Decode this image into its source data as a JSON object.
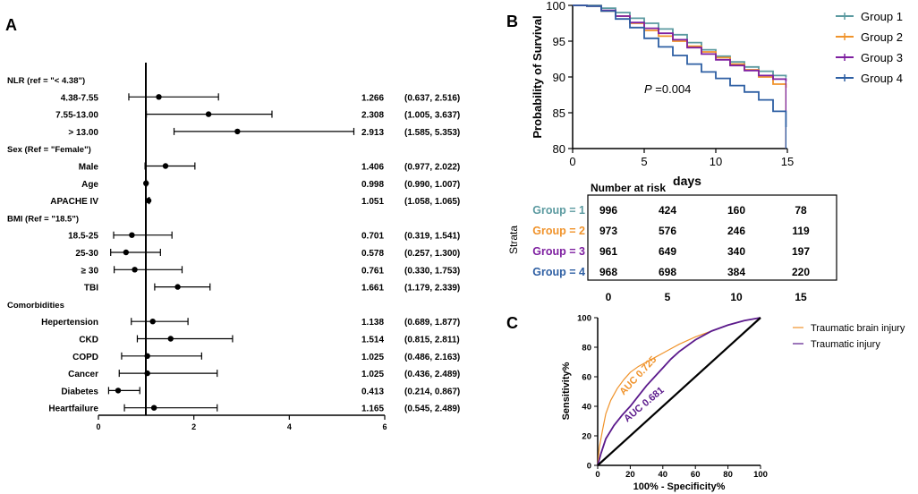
{
  "panel_labels": {
    "a": "A",
    "b": "B",
    "c": "C"
  },
  "colors": {
    "group1": "#5b9aa0",
    "group2": "#f0932b",
    "group3": "#7e1fa0",
    "group4": "#2e5fa3",
    "tbi": "#f0932b",
    "ti": "#5b1a8c"
  },
  "chart_data": [
    {
      "type": "forest",
      "panel": "A",
      "xlim": [
        0,
        6
      ],
      "xticks": [
        "0",
        "2",
        "4",
        "6"
      ],
      "reference_line": 1,
      "rows": [
        {
          "label": "NLR (ref = \"< 4.38\")",
          "header": true
        },
        {
          "label": "4.38-7.55",
          "or": 1.266,
          "lo": 0.637,
          "hi": 2.516,
          "or_text": "1.266",
          "ci_text": "(0.637, 2.516)"
        },
        {
          "label": "7.55-13.00",
          "or": 2.308,
          "lo": 1.005,
          "hi": 3.637,
          "or_text": "2.308",
          "ci_text": "(1.005, 3.637)"
        },
        {
          "label": "> 13.00",
          "or": 2.913,
          "lo": 1.585,
          "hi": 5.353,
          "or_text": "2.913",
          "ci_text": "(1.585, 5.353)"
        },
        {
          "label": "Sex (Ref = \"Female\")",
          "header": true
        },
        {
          "label": "Male",
          "or": 1.406,
          "lo": 0.977,
          "hi": 2.022,
          "or_text": "1.406",
          "ci_text": "(0.977,  2.022)"
        },
        {
          "label": "Age",
          "or": 0.998,
          "lo": 0.99,
          "hi": 1.007,
          "or_text": "0.998",
          "ci_text": "(0.990, 1.007)"
        },
        {
          "label": "APACHE IV",
          "or": 1.051,
          "lo": 1.058,
          "hi": 1.065,
          "or_text": "1.051",
          "ci_text": "(1.058, 1.065)"
        },
        {
          "label": "BMI (Ref = \"18.5\")",
          "header": true
        },
        {
          "label": "18.5-25",
          "or": 0.701,
          "lo": 0.319,
          "hi": 1.541,
          "or_text": "0.701",
          "ci_text": "(0.319, 1.541)"
        },
        {
          "label": "25-30",
          "or": 0.578,
          "lo": 0.257,
          "hi": 1.3,
          "or_text": "0.578",
          "ci_text": "(0.257, 1.300)"
        },
        {
          "label": "≥ 30",
          "or": 0.761,
          "lo": 0.33,
          "hi": 1.753,
          "or_text": "0.761",
          "ci_text": "(0.330, 1.753)"
        },
        {
          "label": "TBI",
          "or": 1.661,
          "lo": 1.179,
          "hi": 2.339,
          "or_text": "1.661",
          "ci_text": "(1.179, 2.339)"
        },
        {
          "label": "Comorbidities",
          "header": true
        },
        {
          "label": "Hepertension",
          "or": 1.138,
          "lo": 0.689,
          "hi": 1.877,
          "or_text": "1.138",
          "ci_text": "(0.689, 1.877)"
        },
        {
          "label": "CKD",
          "or": 1.514,
          "lo": 0.815,
          "hi": 2.811,
          "or_text": "1.514",
          "ci_text": "(0.815, 2.811)"
        },
        {
          "label": "COPD",
          "or": 1.025,
          "lo": 0.486,
          "hi": 2.163,
          "or_text": "1.025",
          "ci_text": "(0.486, 2.163)"
        },
        {
          "label": "Cancer",
          "or": 1.025,
          "lo": 0.436,
          "hi": 2.489,
          "or_text": "1.025",
          "ci_text": "(0.436, 2.489)"
        },
        {
          "label": "Diabetes",
          "or": 0.413,
          "lo": 0.214,
          "hi": 0.867,
          "or_text": "0.413",
          "ci_text": "(0.214, 0.867)"
        },
        {
          "label": "Heartfailure",
          "or": 1.165,
          "lo": 0.545,
          "hi": 2.489,
          "or_text": "1.165",
          "ci_text": "(0.545, 2.489)"
        }
      ]
    },
    {
      "type": "line",
      "subtype": "kaplan-meier",
      "panel": "B",
      "ylabel": "Probability of Survival",
      "xlabel": "days",
      "xlim": [
        0,
        15
      ],
      "ylim": [
        80,
        100
      ],
      "xticks": [
        "0",
        "5",
        "10",
        "15"
      ],
      "yticks": [
        "80",
        "85",
        "90",
        "95",
        "100"
      ],
      "annotation": {
        "p_label": "P",
        "p_value": " =0.004"
      },
      "legend_position": "top-right",
      "series": [
        {
          "name": "Group 1",
          "x": [
            0,
            1,
            2,
            3,
            4,
            5,
            6,
            7,
            8,
            9,
            10,
            11,
            12,
            13,
            14,
            14.9
          ],
          "y": [
            100,
            100,
            99.6,
            99,
            98.2,
            97.5,
            96.7,
            95.9,
            94.8,
            93.8,
            92.9,
            92.1,
            91.4,
            90.8,
            90.2,
            90
          ]
        },
        {
          "name": "Group 2",
          "x": [
            0,
            1,
            2,
            3,
            4,
            5,
            6,
            7,
            8,
            9,
            10,
            11,
            12,
            13,
            14,
            14.9
          ],
          "y": [
            100,
            99.9,
            99.2,
            98.5,
            97.5,
            96.5,
            95.7,
            95,
            94.3,
            93.5,
            92.7,
            91.8,
            91,
            90,
            89,
            88.5
          ]
        },
        {
          "name": "Group 3",
          "x": [
            0,
            1,
            2,
            3,
            4,
            5,
            6,
            7,
            8,
            9,
            10,
            11,
            12,
            13,
            14,
            14.9
          ],
          "y": [
            100,
            99.9,
            99.3,
            98.5,
            97.6,
            96.8,
            96.1,
            95.2,
            94.1,
            93.2,
            92.4,
            91.6,
            90.9,
            90.2,
            89.7,
            89.4
          ]
        },
        {
          "name": "Group 4",
          "x": [
            0,
            1,
            2,
            3,
            4,
            5,
            6,
            7,
            8,
            9,
            10,
            11,
            12,
            13,
            14,
            14.9
          ],
          "y": [
            100,
            99.9,
            99.2,
            98.1,
            96.9,
            95.4,
            94.2,
            93,
            91.8,
            90.7,
            89.8,
            88.8,
            87.9,
            86.8,
            85.2,
            83
          ]
        }
      ],
      "risk_table": {
        "title": "Number at risk",
        "strata_label": "Strata",
        "times": [
          "0",
          "5",
          "10",
          "15"
        ],
        "rows": [
          {
            "label": "Group = 1",
            "values": [
              "996",
              "424",
              "160",
              "78"
            ]
          },
          {
            "label": "Group = 2",
            "values": [
              "973",
              "576",
              "246",
              "119"
            ]
          },
          {
            "label": "Group = 3",
            "values": [
              "961",
              "649",
              "340",
              "197"
            ]
          },
          {
            "label": "Group = 4",
            "values": [
              "968",
              "698",
              "384",
              "220"
            ]
          }
        ]
      }
    },
    {
      "type": "line",
      "subtype": "roc",
      "panel": "C",
      "xlabel": "100% - Specificity%",
      "ylabel": "Sensitivity%",
      "xlim": [
        0,
        100
      ],
      "ylim": [
        0,
        100
      ],
      "xticks": [
        "0",
        "20",
        "40",
        "60",
        "80",
        "100"
      ],
      "yticks": [
        "0",
        "20",
        "40",
        "60",
        "80",
        "100"
      ],
      "legend_position": "top-right",
      "series": [
        {
          "name": "Traumatic brain injury",
          "auc_label": "AUC 0.725",
          "x": [
            0,
            1,
            3,
            5,
            8,
            12,
            16,
            20,
            25,
            30,
            35,
            40,
            45,
            50,
            60,
            70,
            80,
            90,
            100
          ],
          "y": [
            0,
            12,
            24,
            35,
            44,
            52,
            58,
            63,
            67,
            70,
            73,
            76,
            79,
            82,
            87,
            91,
            95,
            98,
            100
          ]
        },
        {
          "name": "Traumatic injury",
          "auc_label": "AUC 0.681",
          "x": [
            0,
            2,
            5,
            10,
            15,
            20,
            25,
            30,
            35,
            40,
            45,
            50,
            60,
            70,
            80,
            90,
            100
          ],
          "y": [
            0,
            8,
            18,
            27,
            34,
            40,
            47,
            54,
            60,
            66,
            72,
            77,
            85,
            91,
            95,
            98,
            100
          ]
        },
        {
          "name": "reference",
          "x": [
            0,
            100
          ],
          "y": [
            0,
            100
          ]
        }
      ]
    }
  ]
}
